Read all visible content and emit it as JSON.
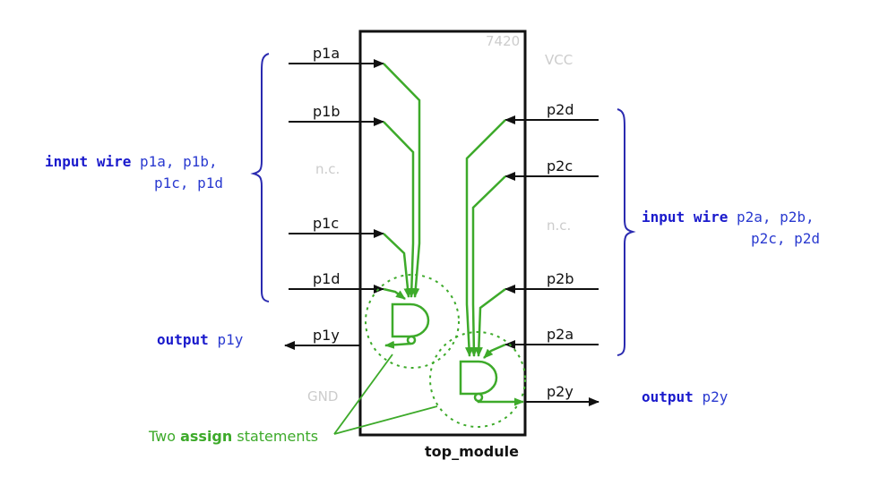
{
  "chip": {
    "part_number": "7420",
    "module_name": "top_module",
    "vcc": "VCC",
    "gnd": "GND",
    "nc_left": "n.c.",
    "nc_right": "n.c."
  },
  "pins_left": {
    "p1a": "p1a",
    "p1b": "p1b",
    "p1c": "p1c",
    "p1d": "p1d",
    "p1y": "p1y"
  },
  "pins_right": {
    "p2d": "p2d",
    "p2c": "p2c",
    "p2b": "p2b",
    "p2a": "p2a",
    "p2y": "p2y"
  },
  "decl_left": {
    "kw_input": "input",
    "kw_wire": "wire",
    "names_line1": "p1a, p1b,",
    "names_line2": "p1c, p1d"
  },
  "decl_right": {
    "kw_input": "input",
    "kw_wire": "wire",
    "names_line1": "p2a, p2b,",
    "names_line2": "p2c, p2d"
  },
  "out_left": {
    "kw_output": "output",
    "name": "p1y"
  },
  "out_right": {
    "kw_output": "output",
    "name": "p2y"
  },
  "annotation": {
    "prefix": "Two",
    "bold": "assign",
    "suffix": "statements"
  },
  "colors": {
    "declaration": "#1a1acc",
    "gate": "#3daa2a",
    "bracket": "#2a2ab0",
    "chip_border": "#111111",
    "faded_label": "#cccccc"
  }
}
